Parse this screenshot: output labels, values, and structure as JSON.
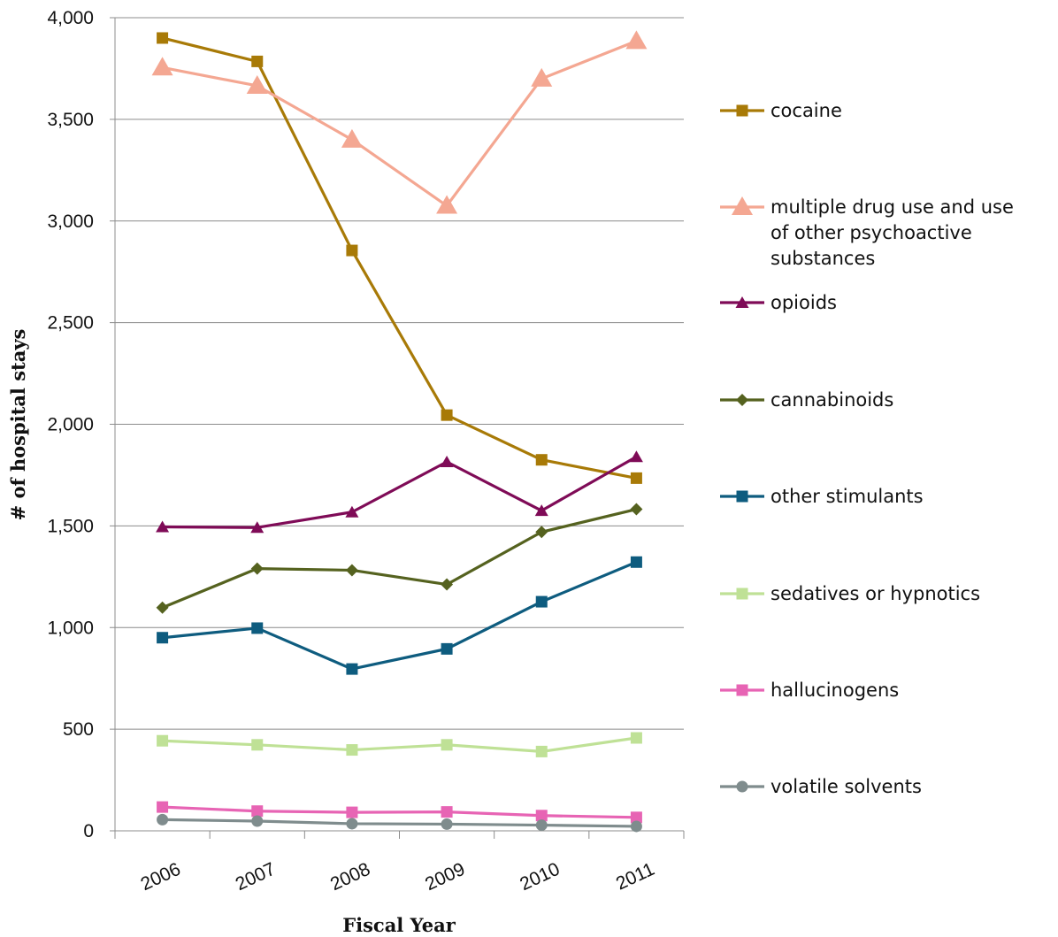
{
  "chart_data": {
    "type": "line",
    "title": "",
    "xlabel": "Fiscal Year",
    "ylabel": "# of hospital stays",
    "x": [
      "2006",
      "2007",
      "2008",
      "2009",
      "2010",
      "2011"
    ],
    "ylim": [
      0,
      4000
    ],
    "y_ticks": [
      0,
      500,
      1000,
      1500,
      2000,
      2500,
      3000,
      3500,
      4000
    ],
    "y_tick_labels": [
      "0",
      "500",
      "1,000",
      "1,500",
      "2,000",
      "2,500",
      "3,000",
      "3,500",
      "4,000"
    ],
    "grid": "horizontal",
    "legend_position": "right",
    "series": [
      {
        "name": "cocaine",
        "values": [
          3900,
          3785,
          2855,
          2045,
          1825,
          1735
        ],
        "color": "#A87A07",
        "marker": "square"
      },
      {
        "name": "multiple drug use and use of other psychoactive substances",
        "legend_lines": [
          "multiple drug use and use",
          "of other psychoactive",
          "substances"
        ],
        "values": [
          3755,
          3665,
          3400,
          3075,
          3700,
          3885
        ],
        "color": "#F4A792",
        "marker": "triangle-large"
      },
      {
        "name": "opioids",
        "values": [
          1495,
          1492,
          1568,
          1815,
          1575,
          1840
        ],
        "color": "#7F0B57",
        "marker": "triangle"
      },
      {
        "name": "cannabinoids",
        "values": [
          1098,
          1290,
          1282,
          1212,
          1470,
          1582
        ],
        "color": "#55621F",
        "marker": "diamond"
      },
      {
        "name": "other stimulants",
        "values": [
          950,
          997,
          796,
          895,
          1127,
          1322
        ],
        "color": "#0E5C7F",
        "marker": "square"
      },
      {
        "name": "sedatives or hypnotics",
        "values": [
          443,
          423,
          398,
          423,
          390,
          457
        ],
        "color": "#BFE196",
        "marker": "square"
      },
      {
        "name": "hallucinogens",
        "values": [
          117,
          97,
          91,
          93,
          75,
          66
        ],
        "color": "#E764B4",
        "marker": "square"
      },
      {
        "name": "volatile solvents",
        "values": [
          55,
          48,
          35,
          33,
          28,
          22
        ],
        "color": "#7F8C8D",
        "marker": "circle"
      }
    ]
  }
}
